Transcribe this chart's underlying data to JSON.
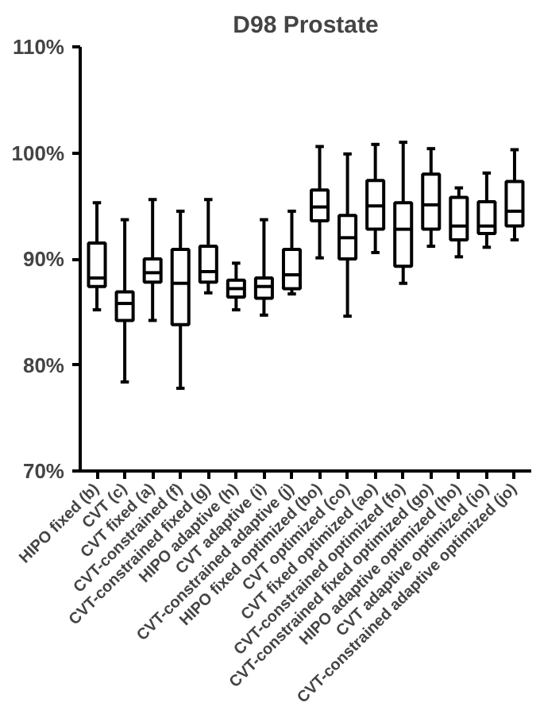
{
  "chart_data": {
    "type": "box",
    "title": "D98 Prostate",
    "categories": [
      "HIPO fixed (b)",
      "CVT (c)",
      "CVT fixed (a)",
      "CVT-constrained (f)",
      "CVT-constrained fixed (g)",
      "HIPO adaptive (h)",
      "CVT adaptive (i)",
      "CVT-constrained adaptive (j)",
      "HIPO fixed optimized (bo)",
      "CVT optimized (co)",
      "CVT fixed optimized (ao)",
      "CVT-constrained optimized (fo)",
      "CVT-constrained fixed optimized (go)",
      "HIPO adaptive optimized (ho)",
      "CVT adaptive optimized (io)",
      "CVT-constrained adaptive optimized (jo)"
    ],
    "color": "#000000",
    "boxes": [
      {
        "low": 85.2,
        "q1": 87.4,
        "median": 88.2,
        "q3": 91.5,
        "high": 95.3
      },
      {
        "low": 78.4,
        "q1": 84.2,
        "median": 85.8,
        "q3": 86.9,
        "high": 93.7
      },
      {
        "low": 84.2,
        "q1": 87.8,
        "median": 88.7,
        "q3": 90.0,
        "high": 95.6
      },
      {
        "low": 77.8,
        "q1": 83.8,
        "median": 87.7,
        "q3": 90.9,
        "high": 94.5
      },
      {
        "low": 86.8,
        "q1": 87.8,
        "median": 88.8,
        "q3": 91.2,
        "high": 95.6
      },
      {
        "low": 85.2,
        "q1": 86.4,
        "median": 87.2,
        "q3": 88.0,
        "high": 89.6
      },
      {
        "low": 84.7,
        "q1": 86.3,
        "median": 87.4,
        "q3": 88.2,
        "high": 93.7
      },
      {
        "low": 86.7,
        "q1": 87.2,
        "median": 88.5,
        "q3": 90.9,
        "high": 94.5
      },
      {
        "low": 90.1,
        "q1": 93.6,
        "median": 94.9,
        "q3": 96.5,
        "high": 100.6
      },
      {
        "low": 84.6,
        "q1": 90.0,
        "median": 92.0,
        "q3": 94.1,
        "high": 99.9
      },
      {
        "low": 90.6,
        "q1": 92.8,
        "median": 95.0,
        "q3": 97.4,
        "high": 100.8
      },
      {
        "low": 87.7,
        "q1": 89.3,
        "median": 92.8,
        "q3": 95.3,
        "high": 101.0
      },
      {
        "low": 91.2,
        "q1": 92.8,
        "median": 95.1,
        "q3": 98.0,
        "high": 100.4
      },
      {
        "low": 90.2,
        "q1": 91.8,
        "median": 93.1,
        "q3": 95.8,
        "high": 96.7
      },
      {
        "low": 91.1,
        "q1": 92.4,
        "median": 93.1,
        "q3": 95.4,
        "high": 98.1
      },
      {
        "low": 91.8,
        "q1": 93.1,
        "median": 94.5,
        "q3": 97.3,
        "high": 100.3
      }
    ],
    "ylim": [
      70,
      110
    ],
    "yticks": [
      {
        "value": 70,
        "label": "70%"
      },
      {
        "value": 80,
        "label": "80%"
      },
      {
        "value": 90,
        "label": "90%"
      },
      {
        "value": 100,
        "label": "100%"
      },
      {
        "value": 110,
        "label": "110%"
      }
    ],
    "grid": false
  }
}
